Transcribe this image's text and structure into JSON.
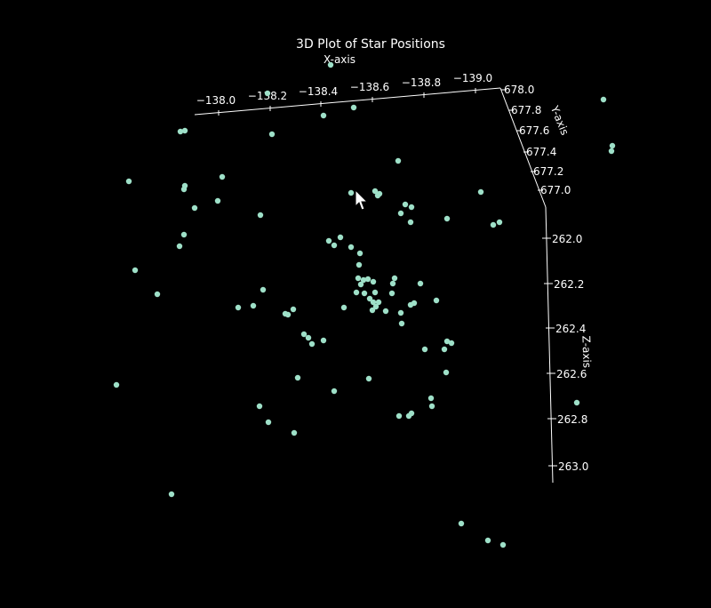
{
  "chart_data": {
    "type": "scatter",
    "projection": "3d",
    "title": "3D Plot of Star Positions",
    "xlabel": "X-axis",
    "ylabel": "Y-axis",
    "zlabel": "Z-axis",
    "x_ticks": [
      "−138.0",
      "−138.2",
      "−138.4",
      "−138.6",
      "−138.8",
      "−139.0"
    ],
    "y_ticks": [
      "678.0",
      "677.8",
      "677.6",
      "677.4",
      "677.2",
      "677.0"
    ],
    "z_ticks": [
      "262.0",
      "262.2",
      "262.4",
      "262.6",
      "262.8",
      "263.0"
    ],
    "xlim": [
      -139.0,
      -138.0
    ],
    "ylim": [
      677.0,
      678.0
    ],
    "zlim": [
      262.0,
      263.0
    ],
    "grid": false,
    "colors": {
      "background": "#000000",
      "marker": "#9ee0c8",
      "axis": "#ffffff"
    },
    "point_count": 100
  }
}
